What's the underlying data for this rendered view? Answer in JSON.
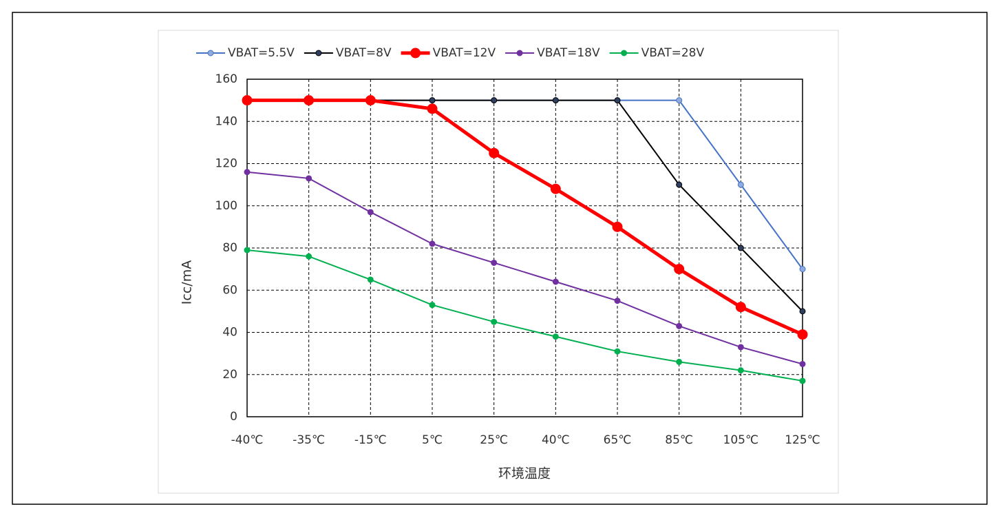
{
  "chart_data": {
    "type": "line",
    "x_label": "环境温度",
    "y_label": "Icc/mA",
    "categories": [
      "-40℃",
      "-35℃",
      "-15℃",
      "5℃",
      "25℃",
      "40℃",
      "65℃",
      "85℃",
      "105℃",
      "125℃"
    ],
    "series": [
      {
        "name": "VBAT=5.5V",
        "color": "#4472c4",
        "marker_color": "#8faadc",
        "values": [
          150,
          150,
          150,
          150,
          150,
          150,
          150,
          150,
          110,
          70
        ]
      },
      {
        "name": "VBAT=8V",
        "color": "#000000",
        "marker_color": "#2f3f5f",
        "values": [
          150,
          150,
          150,
          150,
          150,
          150,
          150,
          110,
          80,
          50
        ]
      },
      {
        "name": "VBAT=12V",
        "color": "#ff0000",
        "marker_color": "#ff0000",
        "values": [
          150,
          150,
          150,
          146,
          125,
          108,
          90,
          70,
          52,
          39
        ]
      },
      {
        "name": "VBAT=18V",
        "color": "#7030a0",
        "marker_color": "#7030a0",
        "values": [
          116,
          113,
          97,
          82,
          73,
          64,
          55,
          43,
          33,
          25
        ]
      },
      {
        "name": "VBAT=28V",
        "color": "#00b050",
        "marker_color": "#00b050",
        "values": [
          79,
          76,
          65,
          53,
          45,
          38,
          31,
          26,
          22,
          17
        ]
      }
    ],
    "ylim": [
      0,
      160
    ],
    "yticks": [
      0,
      20,
      40,
      60,
      80,
      100,
      120,
      140,
      160
    ],
    "grid": true,
    "legend": "top"
  }
}
